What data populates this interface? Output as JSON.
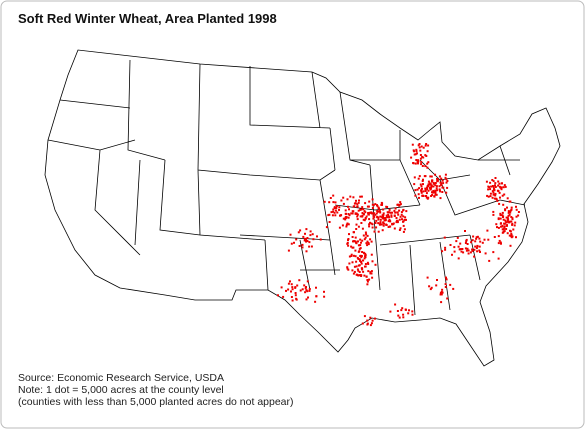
{
  "title": "Soft Red Winter Wheat, Area Planted 1998",
  "source": "Source: Economic Research Service, USDA",
  "note": "Note: 1 dot = 5,000 acres at the county level",
  "note_detail": "(counties with less than 5,000 planted acres do not appear)"
}
